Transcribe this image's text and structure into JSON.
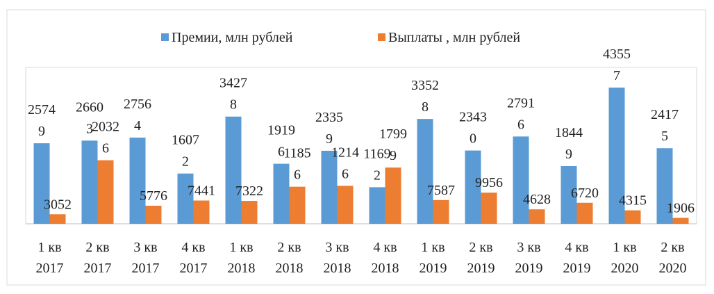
{
  "chart_data": {
    "type": "bar",
    "categories": [
      "1 кв 2017",
      "2 кв 2017",
      "3 кв 2017",
      "4 кв 2017",
      "1 кв 2018",
      "2 кв 2018",
      "3 кв 2018",
      "4 кв 2018",
      "1 кв 2019",
      "2 кв 2019",
      "3 кв 2019",
      "4 кв 2019",
      "1 кв 2020",
      "2 кв 2020"
    ],
    "series": [
      {
        "name": "Премии, млн рублей",
        "color": "#5b9bd5",
        "values": [
          25749,
          26603,
          27564,
          16072,
          34278,
          19196,
          23359,
          11692,
          33528,
          23430,
          27916,
          18449,
          43557,
          24175
        ]
      },
      {
        "name": "Выплаты , млн рублей",
        "color": "#ed7d31",
        "values": [
          3052,
          20326,
          5776,
          7441,
          7322,
          11856,
          12146,
          17999,
          7587,
          9956,
          4628,
          6720,
          4315,
          1906
        ]
      }
    ],
    "ylim": [
      0,
      50000
    ],
    "legend": "top"
  }
}
